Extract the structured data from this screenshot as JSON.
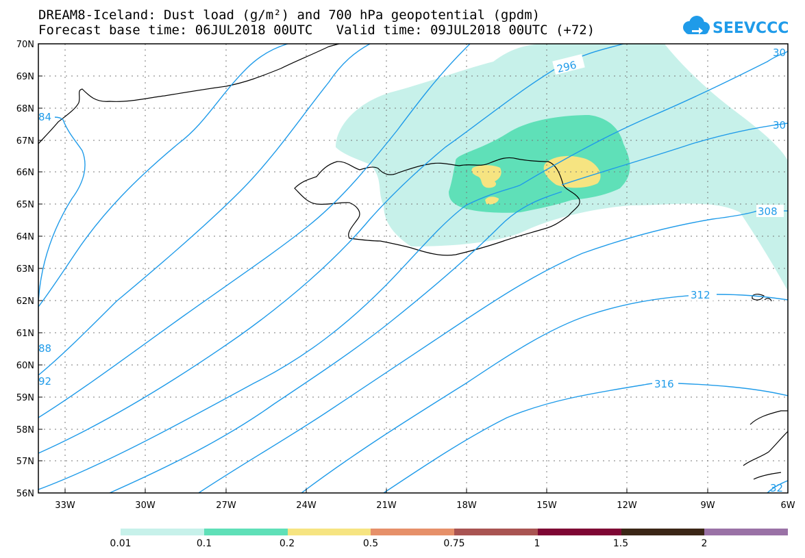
{
  "title_line1": "DREAM8-Iceland: Dust load (g/m²) and 700 hPa geopotential (gpdm)",
  "title_line2": "Forecast base time: 06JUL2018 00UTC   Valid time: 09JUL2018 00UTC (+72)",
  "logo_text": "SEEVCCC",
  "lat_labels": [
    "70N",
    "69N",
    "68N",
    "67N",
    "66N",
    "65N",
    "64N",
    "63N",
    "62N",
    "61N",
    "60N",
    "59N",
    "58N",
    "57N",
    "56N"
  ],
  "lon_labels": [
    "33W",
    "30W",
    "27W",
    "24W",
    "21W",
    "18W",
    "15W",
    "12W",
    "9W",
    "6W"
  ],
  "contour_labels": {
    "c296": "296",
    "c300": "30",
    "c304": "30",
    "c308": "308",
    "c312": "312",
    "c316": "316",
    "c284": "84",
    "c288": "88",
    "c292": "92",
    "c320": "32"
  },
  "colorbar": {
    "labels": [
      "0.01",
      "0.1",
      "0.2",
      "0.5",
      "0.75",
      "1",
      "1.5",
      "2"
    ],
    "colors": [
      "#c7f1ea",
      "#5fe0b8",
      "#f6e481",
      "#e69069",
      "#a95452",
      "#7e0734",
      "#3b2616",
      "#9a72a6"
    ]
  },
  "dust_colors": {
    "level1": "#c7f1ea",
    "level2": "#5fe0b8",
    "level3": "#f6e481"
  },
  "contour_color": "#1f9be9"
}
